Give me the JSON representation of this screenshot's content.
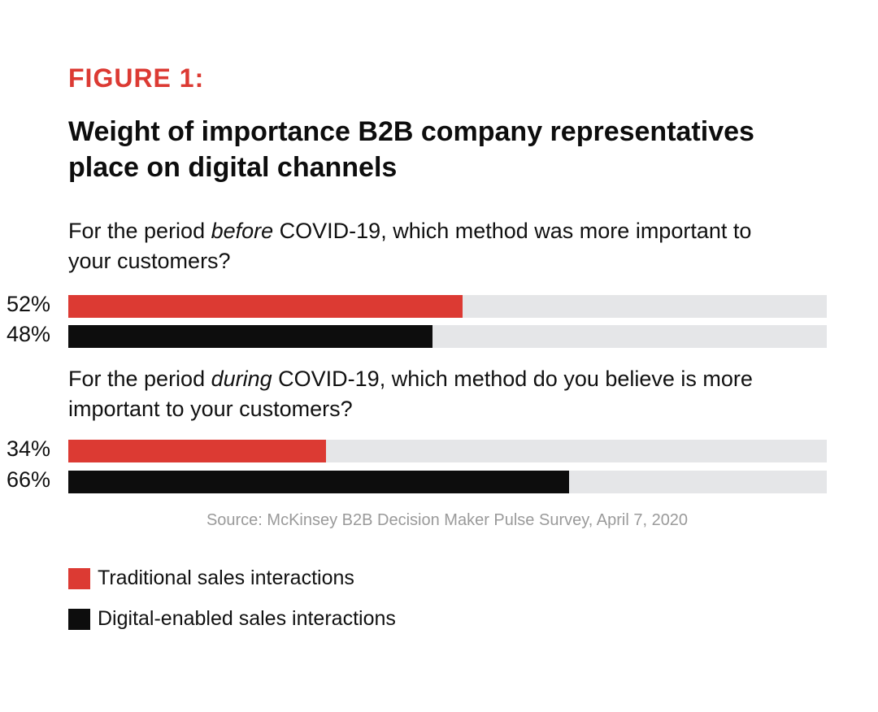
{
  "chart_data": {
    "type": "bar",
    "orientation": "horizontal",
    "figure_label": "FIGURE 1:",
    "title": "Weight of importance B2B company representatives place on digital channels",
    "groups": [
      {
        "question_parts": [
          "For the period ",
          "before",
          " COVID-19, which method was more important to your customers?"
        ],
        "values": [
          52,
          48
        ],
        "labels": [
          "52%",
          "48%"
        ]
      },
      {
        "question_parts": [
          "For the period ",
          "during",
          " COVID-19, which method do you believe is more important to your customers?"
        ],
        "values": [
          34,
          66
        ],
        "labels": [
          "34%",
          "66%"
        ]
      }
    ],
    "series": [
      {
        "name": "Traditional sales interactions",
        "color": "#dc3a33"
      },
      {
        "name": "Digital-enabled sales interactions",
        "color": "#0d0d0d"
      }
    ],
    "xlim": [
      0,
      100
    ],
    "source": "Source:  McKinsey B2B Decision Maker Pulse Survey, April 7, 2020",
    "legend_position": "bottom-left"
  }
}
